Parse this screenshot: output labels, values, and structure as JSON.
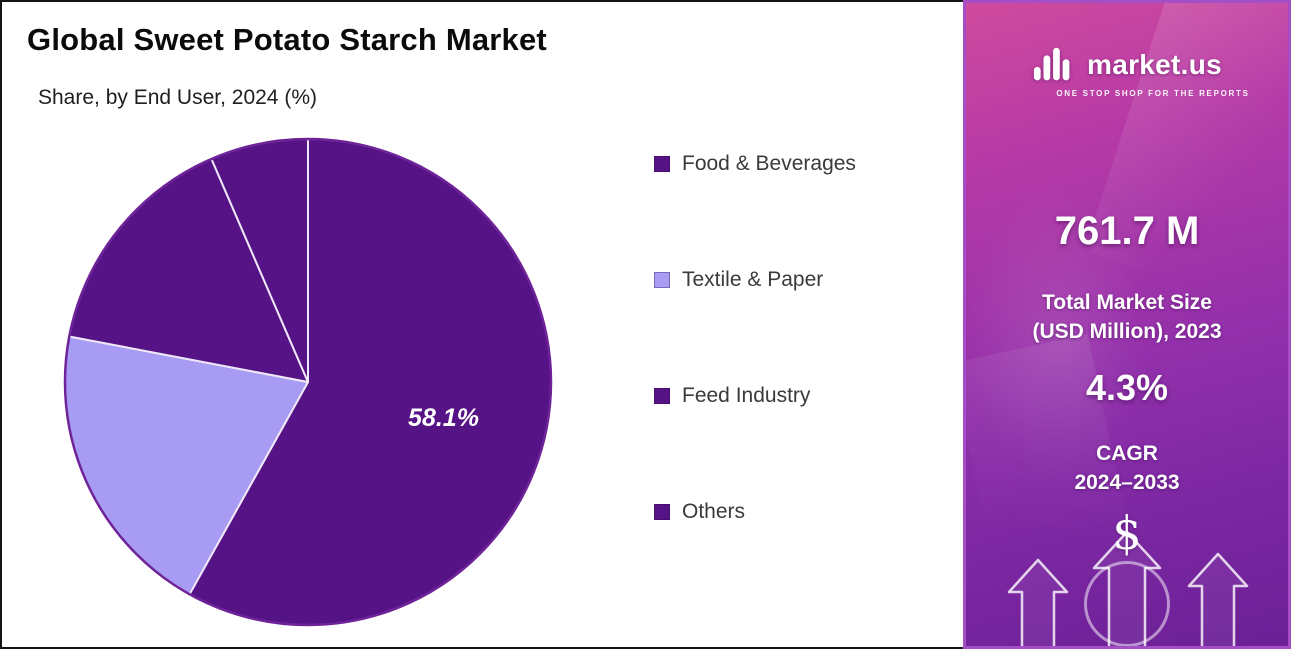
{
  "chart_data": {
    "type": "pie",
    "title": "Global Sweet Potato Starch Market",
    "subtitle": "Share, by End User, 2024 (%)",
    "unit": "%",
    "start_angle": "12-oclock",
    "direction": "clockwise",
    "legend_position": "right",
    "slices": [
      {
        "label": "Food & Beverages",
        "value": 58.1,
        "data_label": "58.1%",
        "color": "#551386"
      },
      {
        "label": "Textile & Paper",
        "value": 19.9,
        "color": "#a89bf4"
      },
      {
        "label": "Feed Industry",
        "value": 15.5,
        "color": "#551386"
      },
      {
        "label": "Others",
        "value": 6.5,
        "color": "#551386"
      }
    ]
  },
  "side_panel": {
    "logo": {
      "brand": "market.us",
      "tagline": "ONE STOP SHOP FOR THE REPORTS"
    },
    "market_size": {
      "value": "761.7 M",
      "label_line1": "Total Market Size",
      "label_line2": "(USD Million), 2023"
    },
    "cagr": {
      "value": "4.3%",
      "label_line1": "CAGR",
      "label_line2": "2024–2033"
    },
    "dollar_symbol": "$",
    "colors": {
      "gradient_start": "#cf4b9e",
      "gradient_end": "#6b2096",
      "frame": "#a44fc6",
      "pie_dark": "#551386",
      "pie_light": "#a89bf4"
    }
  }
}
